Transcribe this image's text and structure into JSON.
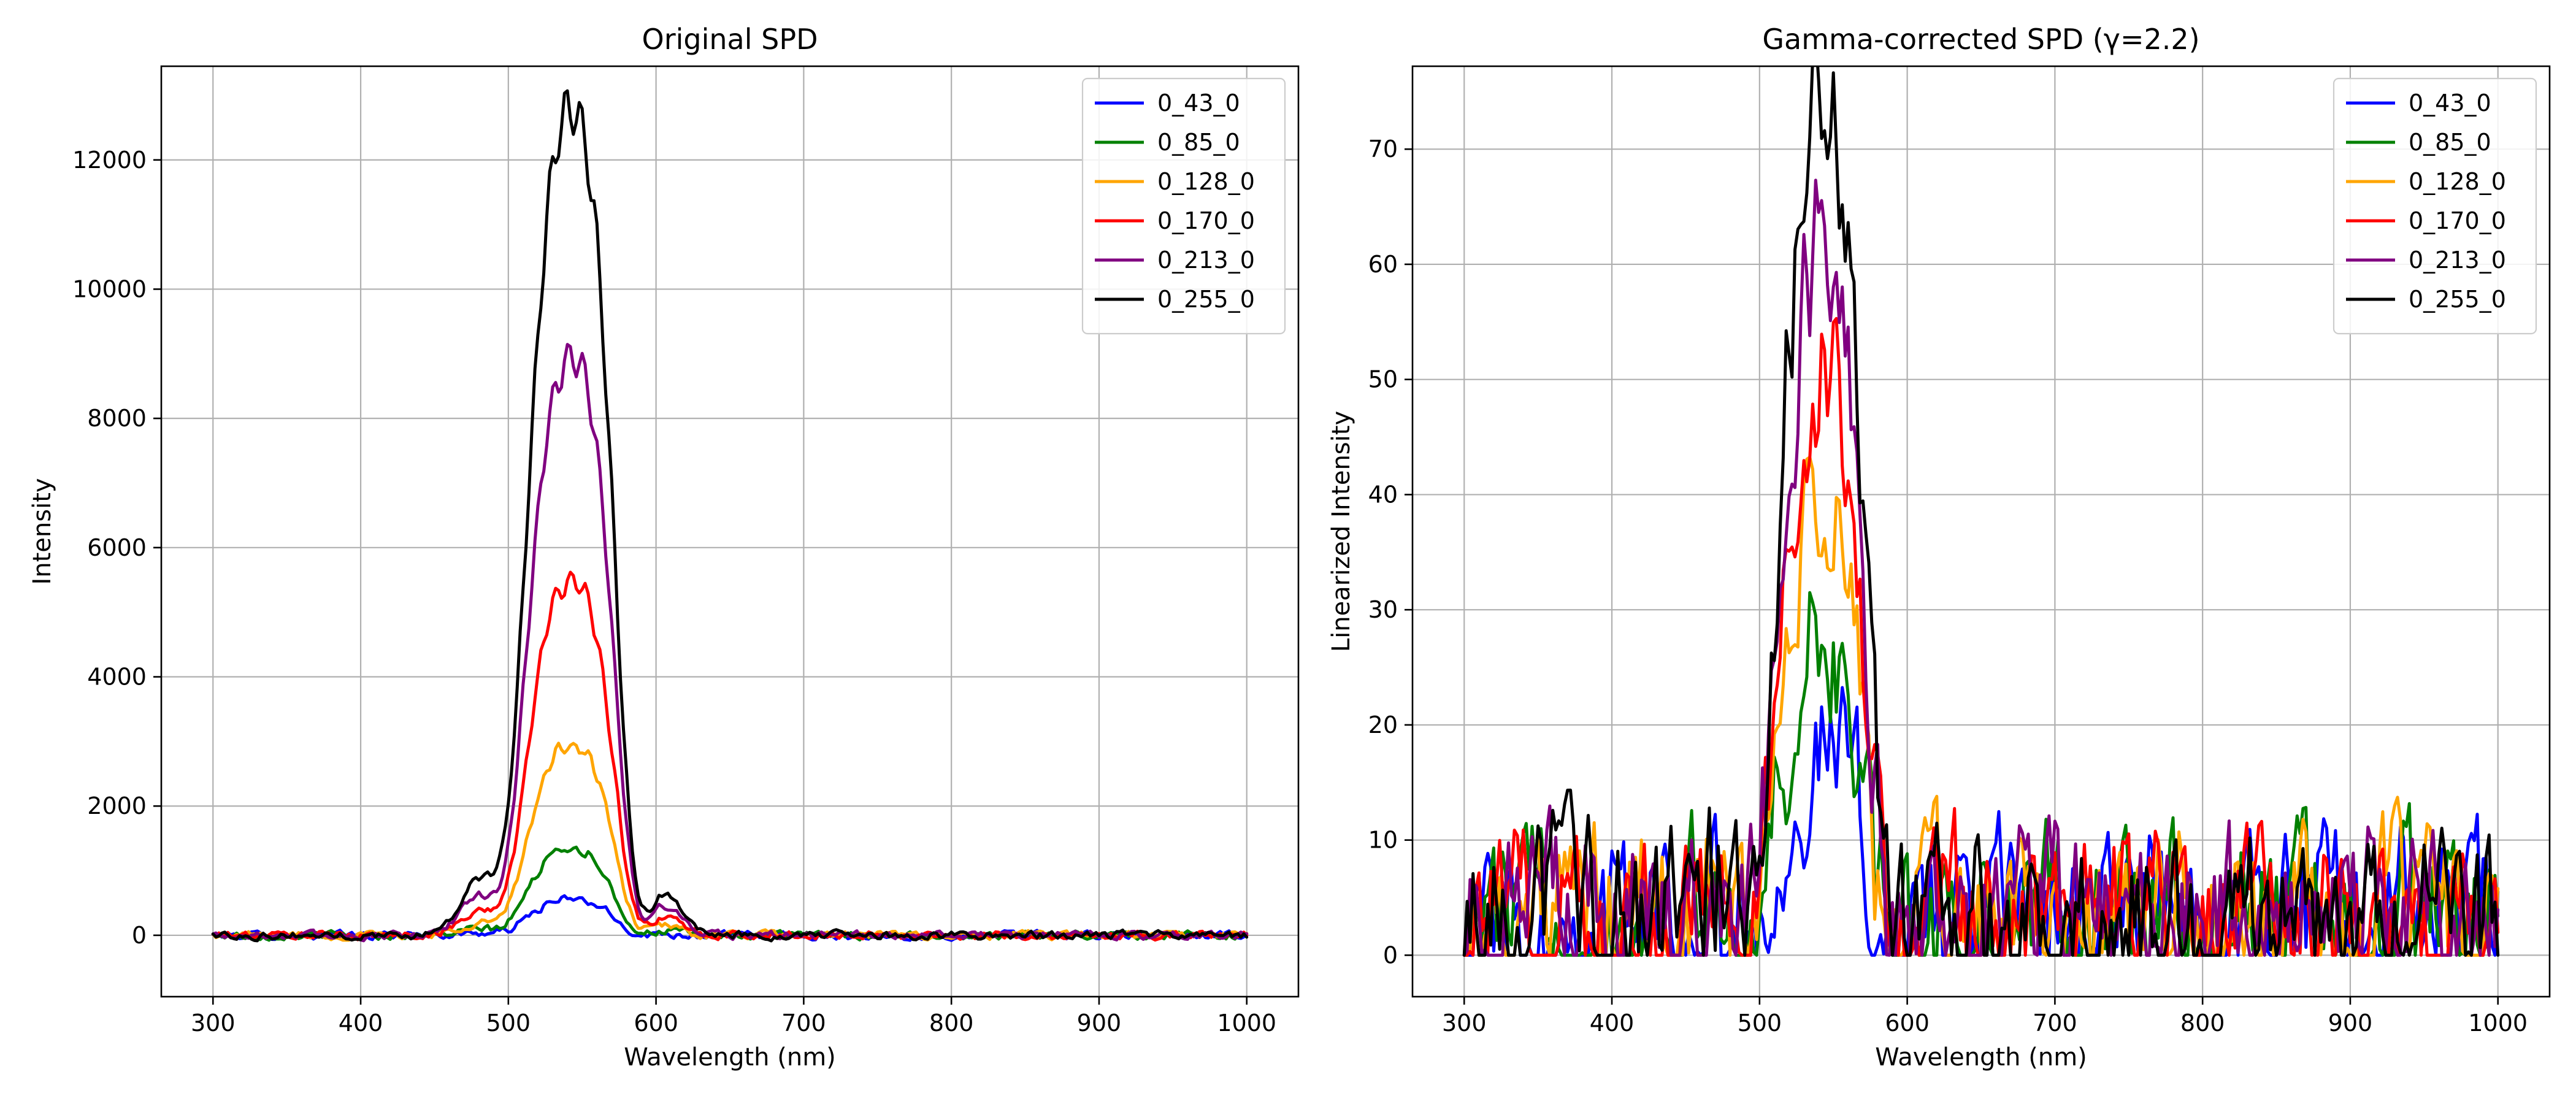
{
  "chart_data": [
    {
      "type": "line",
      "title": "Original SPD",
      "xlabel": "Wavelength (nm)",
      "ylabel": "Intensity",
      "xlim": [
        265,
        1035
      ],
      "ylim": [
        -950,
        13450
      ],
      "xticks": [
        300,
        400,
        500,
        600,
        700,
        800,
        900,
        1000
      ],
      "yticks": [
        0,
        2000,
        4000,
        6000,
        8000,
        10000,
        12000
      ],
      "grid": true,
      "legend_position": "top-right",
      "peak_center": 543,
      "noise_amplitude": 110,
      "series": [
        {
          "name": "0_43_0",
          "color": "#0000ff",
          "peak": 550
        },
        {
          "name": "0_85_0",
          "color": "#008000",
          "peak": 1350
        },
        {
          "name": "0_128_0",
          "color": "#ffa500",
          "peak": 2950
        },
        {
          "name": "0_170_0",
          "color": "#ff0000",
          "peak": 5500
        },
        {
          "name": "0_213_0",
          "color": "#800080",
          "peak": 8950
        },
        {
          "name": "0_255_0",
          "color": "#000000",
          "peak": 12800
        }
      ]
    },
    {
      "type": "line",
      "title": "Gamma-corrected SPD (γ=2.2)",
      "xlabel": "Wavelength (nm)",
      "ylabel": "Linearized Intensity",
      "xlim": [
        265,
        1035
      ],
      "ylim": [
        -3.6,
        77.2
      ],
      "xticks": [
        300,
        400,
        500,
        600,
        700,
        800,
        900,
        1000
      ],
      "yticks": [
        0,
        10,
        20,
        30,
        40,
        50,
        60,
        70
      ],
      "grid": true,
      "legend_position": "top-right",
      "gamma": 2.2,
      "peak_center": 543,
      "noise_amplitude": 13,
      "series": [
        {
          "name": "0_43_0",
          "color": "#0000ff",
          "peak": 18
        },
        {
          "name": "0_85_0",
          "color": "#008000",
          "peak": 26.5
        },
        {
          "name": "0_128_0",
          "color": "#ffa500",
          "peak": 37.7
        },
        {
          "name": "0_170_0",
          "color": "#ff0000",
          "peak": 50.2
        },
        {
          "name": "0_213_0",
          "color": "#800080",
          "peak": 62.5
        },
        {
          "name": "0_255_0",
          "color": "#000000",
          "peak": 73.5
        }
      ]
    }
  ]
}
